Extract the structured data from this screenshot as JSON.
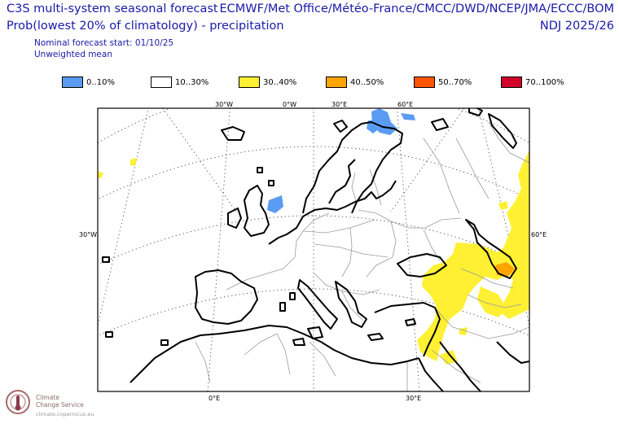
{
  "header": {
    "title_line1": "C3S multi-system seasonal forecast",
    "title_line2": "Prob(lowest 20% of climatology) - precipitation",
    "subtitle_line1": "Nominal forecast start: 01/10/25",
    "subtitle_line2": "Unweighted mean",
    "centres": "ECMWF/Met Office/Météo-France/CMCC/DWD/NCEP/JMA/ECCC/BOM",
    "season": "NDJ 2025/26"
  },
  "legend": [
    {
      "label": "0..10%",
      "color": "#5b9cf2"
    },
    {
      "label": "10..30%",
      "color": "#ffffff"
    },
    {
      "label": "30..40%",
      "color": "#fff033"
    },
    {
      "label": "40..50%",
      "color": "#ffa500"
    },
    {
      "label": "50..70%",
      "color": "#ff5500"
    },
    {
      "label": "70..100%",
      "color": "#d0002a"
    }
  ],
  "axis_labels": {
    "top": [
      "30°W",
      "0°W",
      "30°E",
      "60°E"
    ],
    "left": "30°W",
    "right": "60°E",
    "bottom": [
      "0°E",
      "30°E"
    ]
  },
  "logo": {
    "line1": "Climate",
    "line2": "Change Service",
    "line3": "climate.copernicus.eu"
  }
}
